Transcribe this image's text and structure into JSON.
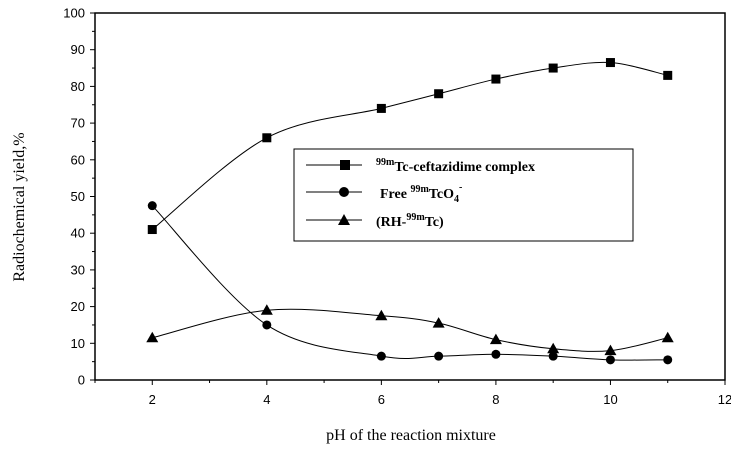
{
  "chart_data": {
    "type": "line",
    "title": "",
    "xlabel": "pH of the reaction mixture",
    "ylabel": "Radiochemical yield,%",
    "xlim": [
      1,
      12
    ],
    "ylim": [
      0,
      100
    ],
    "xticks": [
      2,
      4,
      6,
      8,
      10,
      12
    ],
    "yticks": [
      0,
      10,
      20,
      30,
      40,
      50,
      60,
      70,
      80,
      90,
      100
    ],
    "grid": false,
    "legend": "center-right",
    "x": [
      2,
      4,
      6,
      7,
      8,
      9,
      10,
      11
    ],
    "series": [
      {
        "name": "99mTc-ceftazidime complex",
        "marker": "square",
        "values": [
          41,
          66,
          74,
          78,
          82,
          85,
          86.5,
          83
        ]
      },
      {
        "name": "Free 99mTcO4-",
        "marker": "circle",
        "values": [
          47.5,
          15,
          6.5,
          6.5,
          7,
          6.5,
          5.5,
          5.5
        ]
      },
      {
        "name": "(RH-99mTc)",
        "marker": "triangle",
        "values": [
          11.5,
          19,
          17.5,
          15.5,
          11,
          8.5,
          8,
          11.5
        ]
      }
    ]
  },
  "legend": {
    "entries": [
      {
        "sup": "99m",
        "main": "Tc-ceftazidime complex"
      },
      {
        "pre": "Free ",
        "sup": "99m",
        "main": "TcO",
        "sub": "4",
        "sup2": "-"
      },
      {
        "pre": "(RH-",
        "sup": "99m",
        "main": "Tc)"
      }
    ]
  }
}
